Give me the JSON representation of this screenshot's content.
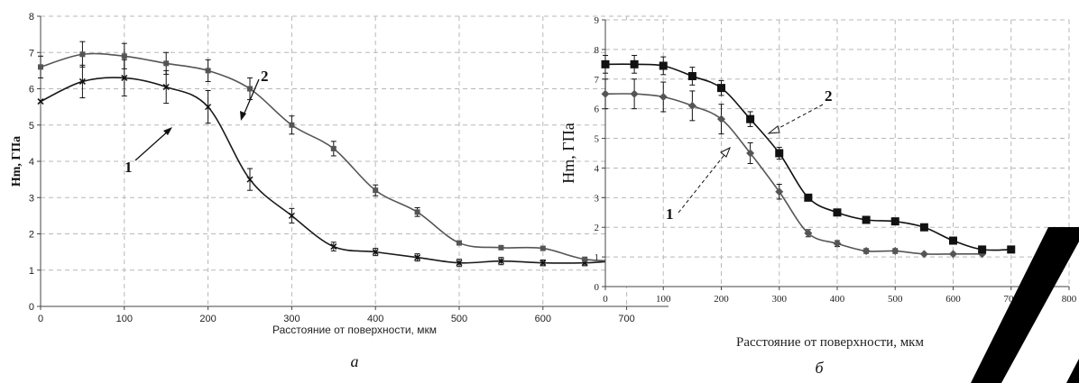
{
  "chart_data": [
    {
      "type": "line",
      "panel_label": "а",
      "xlabel": "Расстояние от поверхности, мкм",
      "ylabel": "Hm, ГПа",
      "xlim": [
        0,
        750
      ],
      "ylim": [
        0,
        8
      ],
      "x_ticks": [
        "0",
        "100",
        "200",
        "300",
        "400",
        "500",
        "600",
        "700"
      ],
      "y_ticks": [
        "0",
        "1",
        "2",
        "3",
        "4",
        "5",
        "6",
        "7",
        "8"
      ],
      "grid": true,
      "series": [
        {
          "name": "1",
          "marker": "cross",
          "x": [
            0,
            50,
            100,
            150,
            200,
            250,
            300,
            350,
            400,
            450,
            500,
            550,
            600,
            650,
            700,
            750
          ],
          "y": [
            5.65,
            6.2,
            6.3,
            6.05,
            5.5,
            3.5,
            2.5,
            1.65,
            1.5,
            1.35,
            1.2,
            1.25,
            1.2,
            1.2,
            1.25,
            1.1
          ],
          "err": [
            0,
            0.45,
            0.5,
            0.45,
            0.45,
            0.3,
            0.2,
            0.12,
            0.1,
            0.1,
            0.1,
            0.1,
            0.08,
            0.08,
            0,
            0
          ]
        },
        {
          "name": "2",
          "marker": "square",
          "x": [
            0,
            50,
            100,
            150,
            200,
            250,
            300,
            350,
            400,
            450,
            500,
            550,
            600,
            650,
            700
          ],
          "y": [
            6.6,
            6.95,
            6.9,
            6.7,
            6.5,
            6.0,
            5.0,
            4.35,
            3.2,
            2.6,
            1.75,
            1.62,
            1.6,
            1.3,
            1.25
          ],
          "err": [
            0.3,
            0.35,
            0.35,
            0.3,
            0.3,
            0.3,
            0.25,
            0.2,
            0.15,
            0.12,
            0,
            0,
            0,
            0,
            0
          ]
        }
      ],
      "annotations": [
        "1",
        "2"
      ]
    },
    {
      "type": "line",
      "panel_label": "б",
      "xlabel": "Расстояние от поверхности, мкм",
      "ylabel": "Hm, ГПа",
      "xlim": [
        0,
        800
      ],
      "ylim": [
        0,
        9
      ],
      "x_ticks": [
        "0",
        "100",
        "200",
        "300",
        "400",
        "500",
        "600",
        "700",
        "800"
      ],
      "y_ticks": [
        "0",
        "1",
        "2",
        "3",
        "4",
        "5",
        "6",
        "7",
        "8",
        "9"
      ],
      "grid": true,
      "series": [
        {
          "name": "1",
          "marker": "diamond",
          "x": [
            0,
            50,
            100,
            150,
            200,
            250,
            300,
            350,
            400,
            450,
            500,
            550,
            600,
            650
          ],
          "y": [
            6.5,
            6.5,
            6.4,
            6.1,
            5.65,
            4.5,
            3.2,
            1.8,
            1.45,
            1.2,
            1.2,
            1.1,
            1.1,
            1.1
          ],
          "err": [
            0.5,
            0.5,
            0.5,
            0.5,
            0.5,
            0.35,
            0.25,
            0.12,
            0.1,
            0.08,
            0.08,
            0,
            0,
            0
          ]
        },
        {
          "name": "2",
          "marker": "square",
          "x": [
            0,
            50,
            100,
            150,
            200,
            250,
            300,
            350,
            400,
            450,
            500,
            550,
            600,
            650,
            700
          ],
          "y": [
            7.5,
            7.5,
            7.45,
            7.1,
            6.7,
            5.65,
            4.5,
            3.0,
            2.5,
            2.25,
            2.2,
            2.0,
            1.55,
            1.25,
            1.25
          ],
          "err": [
            0.3,
            0.3,
            0.3,
            0.3,
            0.25,
            0.25,
            0.2,
            0,
            0,
            0,
            0,
            0,
            0,
            0,
            0
          ]
        }
      ],
      "annotations": [
        "1",
        "2"
      ]
    }
  ]
}
